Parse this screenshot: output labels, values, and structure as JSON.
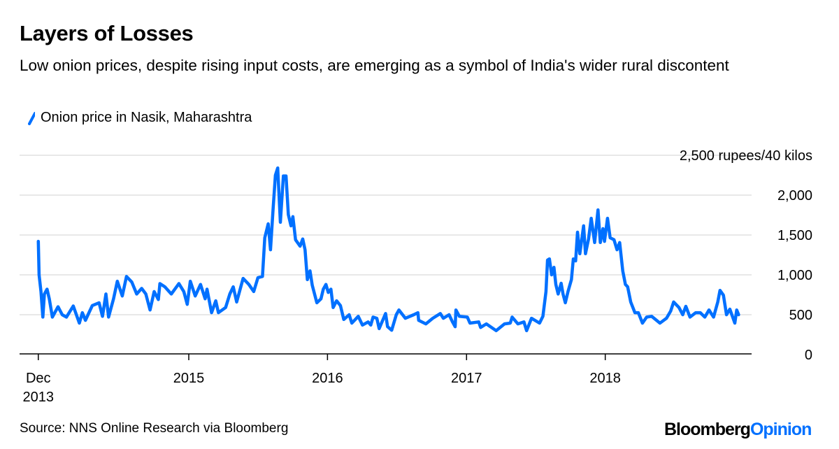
{
  "title": "Layers of Losses",
  "subtitle": "Low onion prices, despite rising input costs, are emerging as a symbol of India's wider rural discontent",
  "source": "Source: NNS Online Research via Bloomberg",
  "logo": {
    "part1": "Bloomberg",
    "part2": "Opinion"
  },
  "colors": {
    "series": "#0070ff",
    "grid": "#e8e8e8",
    "axis": "#000000",
    "logo_accent": "#0070ff"
  },
  "chart_data": {
    "type": "line",
    "title": "Layers of Losses",
    "ylabel": "",
    "yunit_label": "2,500 rupees/40 kilos",
    "ylim": [
      0,
      2500
    ],
    "yticks": [
      0,
      500,
      1000,
      1500,
      2000,
      2500
    ],
    "ytick_labels": [
      "0",
      "500",
      "1,000",
      "1,500",
      "2,000",
      "2,500 rupees/40 kilos"
    ],
    "xticks": [
      {
        "date": "2013-12-01",
        "label": [
          "Dec",
          "2013"
        ]
      },
      {
        "date": "2015-01-01",
        "label": [
          "2015"
        ]
      },
      {
        "date": "2016-01-01",
        "label": [
          "2016"
        ]
      },
      {
        "date": "2017-01-01",
        "label": [
          "2017"
        ]
      },
      {
        "date": "2018-01-01",
        "label": [
          "2018"
        ]
      }
    ],
    "grid": true,
    "legend": "top-left",
    "series": [
      {
        "name": "Onion price in Nasik, Maharashtra",
        "points": [
          [
            "2013-12-01",
            1420
          ],
          [
            "2013-12-03",
            1000
          ],
          [
            "2013-12-08",
            790
          ],
          [
            "2013-12-13",
            470
          ],
          [
            "2013-12-17",
            760
          ],
          [
            "2013-12-24",
            820
          ],
          [
            "2013-12-30",
            700
          ],
          [
            "2014-01-07",
            470
          ],
          [
            "2014-01-22",
            600
          ],
          [
            "2014-02-02",
            500
          ],
          [
            "2014-02-13",
            470
          ],
          [
            "2014-03-03",
            610
          ],
          [
            "2014-03-19",
            395
          ],
          [
            "2014-03-27",
            525
          ],
          [
            "2014-04-04",
            430
          ],
          [
            "2014-04-22",
            615
          ],
          [
            "2014-05-10",
            650
          ],
          [
            "2014-05-19",
            480
          ],
          [
            "2014-05-28",
            760
          ],
          [
            "2014-06-04",
            470
          ],
          [
            "2014-06-17",
            700
          ],
          [
            "2014-06-27",
            920
          ],
          [
            "2014-07-10",
            735
          ],
          [
            "2014-07-21",
            980
          ],
          [
            "2014-08-04",
            910
          ],
          [
            "2014-08-17",
            760
          ],
          [
            "2014-08-30",
            830
          ],
          [
            "2014-09-10",
            760
          ],
          [
            "2014-09-21",
            560
          ],
          [
            "2014-10-02",
            790
          ],
          [
            "2014-10-13",
            690
          ],
          [
            "2014-10-17",
            890
          ],
          [
            "2014-10-30",
            850
          ],
          [
            "2014-11-16",
            760
          ],
          [
            "2014-12-06",
            890
          ],
          [
            "2014-12-19",
            790
          ],
          [
            "2014-12-28",
            630
          ],
          [
            "2015-01-05",
            920
          ],
          [
            "2015-01-18",
            735
          ],
          [
            "2015-02-01",
            880
          ],
          [
            "2015-02-13",
            700
          ],
          [
            "2015-02-18",
            820
          ],
          [
            "2015-03-02",
            525
          ],
          [
            "2015-03-13",
            675
          ],
          [
            "2015-03-20",
            525
          ],
          [
            "2015-04-08",
            590
          ],
          [
            "2015-04-19",
            760
          ],
          [
            "2015-04-28",
            850
          ],
          [
            "2015-05-07",
            660
          ],
          [
            "2015-05-24",
            955
          ],
          [
            "2015-06-08",
            880
          ],
          [
            "2015-06-21",
            790
          ],
          [
            "2015-07-02",
            965
          ],
          [
            "2015-07-14",
            980
          ],
          [
            "2015-07-20",
            1465
          ],
          [
            "2015-07-29",
            1640
          ],
          [
            "2015-08-04",
            1315
          ],
          [
            "2015-08-11",
            1840
          ],
          [
            "2015-08-17",
            2250
          ],
          [
            "2015-08-23",
            2340
          ],
          [
            "2015-08-30",
            1660
          ],
          [
            "2015-09-07",
            2240
          ],
          [
            "2015-09-14",
            2240
          ],
          [
            "2015-09-20",
            1755
          ],
          [
            "2015-09-27",
            1615
          ],
          [
            "2015-10-02",
            1730
          ],
          [
            "2015-10-09",
            1440
          ],
          [
            "2015-10-21",
            1360
          ],
          [
            "2015-10-28",
            1450
          ],
          [
            "2015-11-03",
            1315
          ],
          [
            "2015-11-09",
            940
          ],
          [
            "2015-11-16",
            1050
          ],
          [
            "2015-11-22",
            870
          ],
          [
            "2015-12-04",
            650
          ],
          [
            "2015-12-15",
            700
          ],
          [
            "2015-12-21",
            820
          ],
          [
            "2015-12-28",
            880
          ],
          [
            "2016-01-03",
            780
          ],
          [
            "2016-01-10",
            820
          ],
          [
            "2016-01-16",
            590
          ],
          [
            "2016-01-25",
            675
          ],
          [
            "2016-02-04",
            615
          ],
          [
            "2016-02-13",
            440
          ],
          [
            "2016-02-27",
            500
          ],
          [
            "2016-03-05",
            395
          ],
          [
            "2016-03-22",
            480
          ],
          [
            "2016-04-02",
            370
          ],
          [
            "2016-04-17",
            410
          ],
          [
            "2016-04-24",
            370
          ],
          [
            "2016-04-30",
            470
          ],
          [
            "2016-05-10",
            455
          ],
          [
            "2016-05-16",
            325
          ],
          [
            "2016-06-02",
            515
          ],
          [
            "2016-06-07",
            350
          ],
          [
            "2016-06-18",
            305
          ],
          [
            "2016-06-30",
            500
          ],
          [
            "2016-07-07",
            560
          ],
          [
            "2016-07-24",
            455
          ],
          [
            "2016-08-15",
            500
          ],
          [
            "2016-08-26",
            525
          ],
          [
            "2016-08-28",
            430
          ],
          [
            "2016-09-16",
            385
          ],
          [
            "2016-10-04",
            455
          ],
          [
            "2016-10-24",
            515
          ],
          [
            "2016-11-01",
            455
          ],
          [
            "2016-11-16",
            500
          ],
          [
            "2016-11-25",
            410
          ],
          [
            "2016-12-02",
            350
          ],
          [
            "2016-12-04",
            560
          ],
          [
            "2016-12-13",
            480
          ],
          [
            "2017-01-03",
            470
          ],
          [
            "2017-01-10",
            395
          ],
          [
            "2017-02-02",
            410
          ],
          [
            "2017-02-07",
            340
          ],
          [
            "2017-02-22",
            385
          ],
          [
            "2017-03-20",
            300
          ],
          [
            "2017-04-11",
            385
          ],
          [
            "2017-04-26",
            395
          ],
          [
            "2017-05-01",
            470
          ],
          [
            "2017-05-16",
            385
          ],
          [
            "2017-06-01",
            410
          ],
          [
            "2017-06-08",
            300
          ],
          [
            "2017-06-21",
            455
          ],
          [
            "2017-07-12",
            395
          ],
          [
            "2017-07-21",
            480
          ],
          [
            "2017-07-29",
            790
          ],
          [
            "2017-08-02",
            1185
          ],
          [
            "2017-08-07",
            1200
          ],
          [
            "2017-08-13",
            1000
          ],
          [
            "2017-08-19",
            1095
          ],
          [
            "2017-08-24",
            880
          ],
          [
            "2017-08-30",
            760
          ],
          [
            "2017-09-07",
            895
          ],
          [
            "2017-09-12",
            760
          ],
          [
            "2017-09-18",
            650
          ],
          [
            "2017-09-25",
            790
          ],
          [
            "2017-10-04",
            940
          ],
          [
            "2017-10-09",
            1200
          ],
          [
            "2017-10-15",
            1175
          ],
          [
            "2017-10-20",
            1535
          ],
          [
            "2017-10-26",
            1265
          ],
          [
            "2017-11-05",
            1615
          ],
          [
            "2017-11-10",
            1265
          ],
          [
            "2017-11-18",
            1450
          ],
          [
            "2017-11-25",
            1710
          ],
          [
            "2017-12-04",
            1405
          ],
          [
            "2017-12-13",
            1815
          ],
          [
            "2017-12-19",
            1405
          ],
          [
            "2017-12-26",
            1580
          ],
          [
            "2017-12-30",
            1420
          ],
          [
            "2018-01-07",
            1710
          ],
          [
            "2018-01-14",
            1465
          ],
          [
            "2018-01-24",
            1440
          ],
          [
            "2018-02-01",
            1315
          ],
          [
            "2018-02-08",
            1405
          ],
          [
            "2018-02-16",
            1050
          ],
          [
            "2018-02-23",
            880
          ],
          [
            "2018-03-01",
            850
          ],
          [
            "2018-03-09",
            660
          ],
          [
            "2018-03-20",
            525
          ],
          [
            "2018-03-29",
            525
          ],
          [
            "2018-04-09",
            395
          ],
          [
            "2018-04-20",
            470
          ],
          [
            "2018-05-03",
            480
          ],
          [
            "2018-05-25",
            395
          ],
          [
            "2018-06-11",
            455
          ],
          [
            "2018-06-22",
            545
          ],
          [
            "2018-06-30",
            660
          ],
          [
            "2018-07-14",
            590
          ],
          [
            "2018-07-24",
            500
          ],
          [
            "2018-08-01",
            605
          ],
          [
            "2018-08-12",
            470
          ],
          [
            "2018-08-27",
            525
          ],
          [
            "2018-09-08",
            525
          ],
          [
            "2018-09-20",
            470
          ],
          [
            "2018-10-01",
            560
          ],
          [
            "2018-10-13",
            470
          ],
          [
            "2018-10-24",
            660
          ],
          [
            "2018-10-30",
            805
          ],
          [
            "2018-11-08",
            745
          ],
          [
            "2018-11-16",
            500
          ],
          [
            "2018-11-25",
            570
          ],
          [
            "2018-12-08",
            395
          ],
          [
            "2018-12-13",
            560
          ],
          [
            "2018-12-18",
            500
          ]
        ]
      }
    ]
  }
}
